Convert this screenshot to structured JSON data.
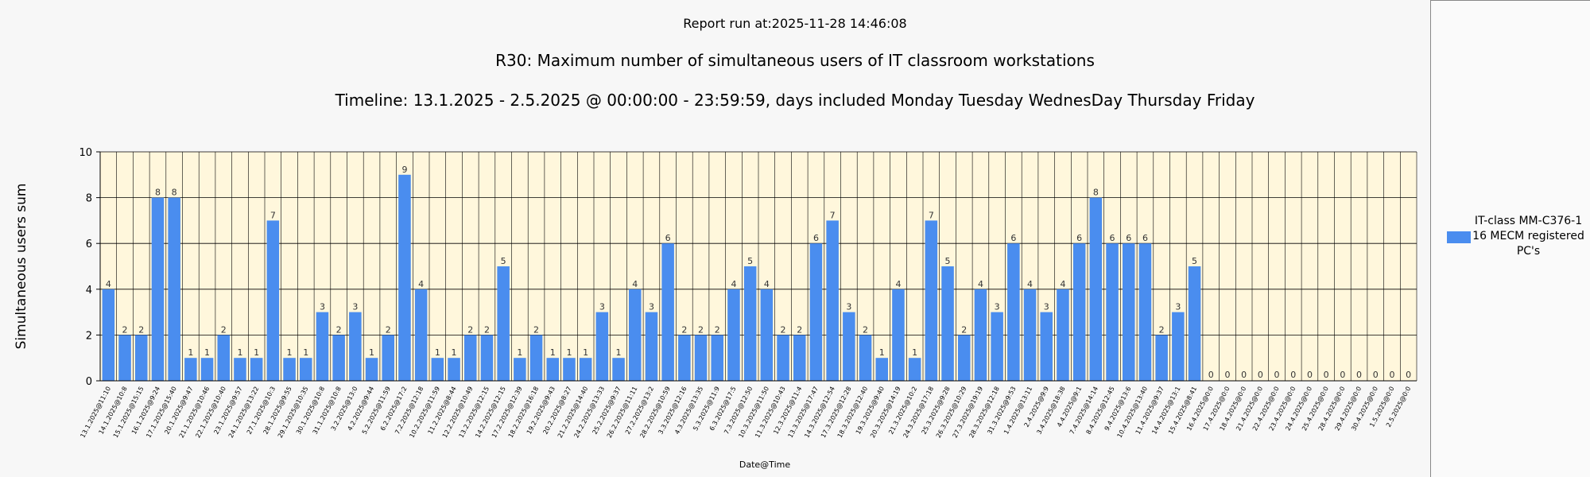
{
  "report_run": "Report run at:2025-11-28 14:46:08",
  "title": "R30: Maximum number of simultaneous users of IT classroom workstations",
  "subtitle": "Timeline: 13.1.2025  - 2.5.2025  @  00:00:00 -  23:59:59, days included Monday Tuesday WednesDay Thursday Friday",
  "legend": {
    "series_label": "IT-class MM-C376-1 16 MECM registered PC's",
    "color": "#4a8def"
  },
  "colors": {
    "bar": "#4a8def",
    "plot_bg": "#fff7dc",
    "grid": "#000000"
  },
  "chart_data": {
    "type": "bar",
    "xlabel": "Date@Time",
    "ylabel": "Simultaneous users sum",
    "ylim": [
      0,
      10
    ],
    "yticks": [
      0,
      2,
      4,
      6,
      8,
      10
    ],
    "grid": true,
    "legend_position": "right",
    "categories": [
      "13.1.2025@11:10",
      "14.1.2025@10:8",
      "15.1.2025@15:15",
      "16.1.2025@9:24",
      "17.1.2025@15:40",
      "20.1.2025@9:47",
      "21.1.2025@10:46",
      "22.1.2025@10:40",
      "23.1.2025@9:57",
      "24.1.2025@13:22",
      "27.1.2025@10:3",
      "28.1.2025@9:55",
      "29.1.2025@10:35",
      "30.1.2025@10:8",
      "31.1.2025@10:8",
      "3.2.2025@13:0",
      "4.2.2025@9:44",
      "5.2.2025@11:59",
      "6.2.2025@17:2",
      "7.2.2025@12:18",
      "10.2.2025@11:59",
      "11.2.2025@8:44",
      "12.2.2025@10:49",
      "13.2.2025@12:15",
      "14.2.2025@12:15",
      "17.2.2025@12:39",
      "18.2.2025@16:18",
      "19.2.2025@9:43",
      "20.2.2025@8:27",
      "21.2.2025@14:40",
      "24.2.2025@13:33",
      "25.2.2025@9:37",
      "26.2.2025@11:11",
      "27.2.2025@13:2",
      "28.2.2025@10:59",
      "3.3.2025@12:16",
      "4.3.2025@13:35",
      "5.3.2025@11:9",
      "6.3.2025@17:5",
      "7.3.2025@12:50",
      "10.3.2025@11:50",
      "11.3.2025@10:43",
      "12.3.2025@11:4",
      "13.3.2025@17:47",
      "14.3.2025@12:54",
      "17.3.2025@12:28",
      "18.3.2025@12:40",
      "19.3.2025@9:40",
      "20.3.2025@14:19",
      "21.3.2025@10:2",
      "24.3.2025@17:18",
      "25.3.2025@9:28",
      "26.3.2025@10:29",
      "27.3.2025@19:19",
      "28.3.2025@12:18",
      "31.3.2025@9:53",
      "1.4.2025@13:11",
      "2.4.2025@9:9",
      "3.4.2025@18:38",
      "4.4.2025@9:1",
      "7.4.2025@14:14",
      "8.4.2025@12:45",
      "9.4.2025@13:6",
      "10.4.2025@13:40",
      "11.4.2025@9:37",
      "14.4.2025@13:1",
      "15.4.2025@8:41",
      "16.4.2025@0:0",
      "17.4.2025@0:0",
      "18.4.2025@0:0",
      "21.4.2025@0:0",
      "22.4.2025@0:0",
      "23.4.2025@0:0",
      "24.4.2025@0:0",
      "25.4.2025@0:0",
      "28.4.2025@0:0",
      "29.4.2025@0:0",
      "30.4.2025@0:0",
      "1.5.2025@0:0",
      "2.5.2025@0:0"
    ],
    "series": [
      {
        "name": "IT-class MM-C376-1 16 MECM registered PC's",
        "values": [
          4,
          2,
          2,
          8,
          8,
          1,
          1,
          2,
          1,
          1,
          7,
          1,
          1,
          3,
          2,
          3,
          1,
          2,
          9,
          4,
          1,
          1,
          2,
          2,
          5,
          1,
          2,
          1,
          1,
          1,
          3,
          1,
          4,
          3,
          6,
          2,
          2,
          2,
          4,
          5,
          4,
          2,
          2,
          6,
          7,
          3,
          2,
          1,
          4,
          1,
          7,
          5,
          2,
          4,
          3,
          6,
          4,
          3,
          4,
          6,
          8,
          6,
          6,
          6,
          2,
          3,
          5,
          0,
          0,
          0,
          0,
          0,
          0,
          0,
          0,
          0,
          0,
          0,
          0,
          0
        ]
      }
    ]
  }
}
